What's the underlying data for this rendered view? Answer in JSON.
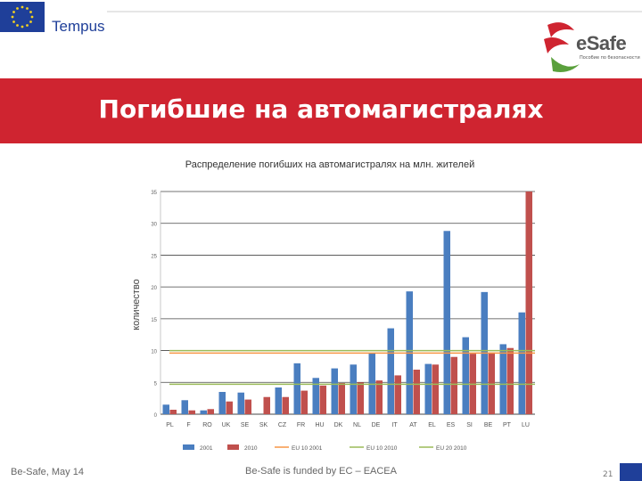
{
  "header": {
    "logo_left_text": "Tempus",
    "logo_right_text": "eSafe",
    "logo_right_subtext": "Пособие по безопасности"
  },
  "banner": {
    "title": "Погибшие на автомагистралях",
    "bg_color": "#cf2430"
  },
  "footer": {
    "left": "Be-Safe, May 14",
    "center": "Be-Safe is funded by EC – EACEA",
    "page_number": "21"
  },
  "colors": {
    "series_2001": "#4a7ec0",
    "series_2010": "#c0504d",
    "eu_2001": "#f79646",
    "eu_2010": "#9bbb59"
  },
  "chart_data": {
    "type": "bar",
    "title": "Распределение погибших на автомагистралях на млн. жителей",
    "xlabel": "",
    "ylabel": "количество",
    "ylim": [
      0,
      35
    ],
    "yticks": [
      0,
      5,
      10,
      15,
      20,
      25,
      30,
      35
    ],
    "grid": true,
    "legend_position": "bottom",
    "categories": [
      "PL",
      "F",
      "RO",
      "UK",
      "SE",
      "SK",
      "CZ",
      "FR",
      "HU",
      "DK",
      "NL",
      "DE",
      "IT",
      "AT",
      "EL",
      "ES",
      "SI",
      "BE",
      "PT",
      "LU"
    ],
    "series": [
      {
        "name": "2001",
        "values": [
          1.5,
          2.2,
          0.6,
          3.5,
          3.4,
          0,
          4.2,
          8.0,
          5.7,
          7.2,
          7.8,
          9.6,
          13.5,
          19.3,
          7.9,
          28.8,
          12.1,
          19.2,
          11.0,
          16.0
        ]
      },
      {
        "name": "2010",
        "values": [
          0.7,
          0.6,
          0.8,
          2.0,
          2.3,
          2.7,
          2.7,
          3.7,
          4.5,
          4.9,
          5.0,
          5.3,
          6.1,
          7.0,
          7.8,
          9.0,
          9.5,
          9.7,
          10.4,
          35.0
        ]
      }
    ],
    "reference_lines": [
      {
        "name": "EU 10 2001",
        "value": 9.6
      },
      {
        "name": "EU 10 2010",
        "value": 10.0
      },
      {
        "name": "EU 20 2010",
        "value": 4.7
      }
    ]
  }
}
